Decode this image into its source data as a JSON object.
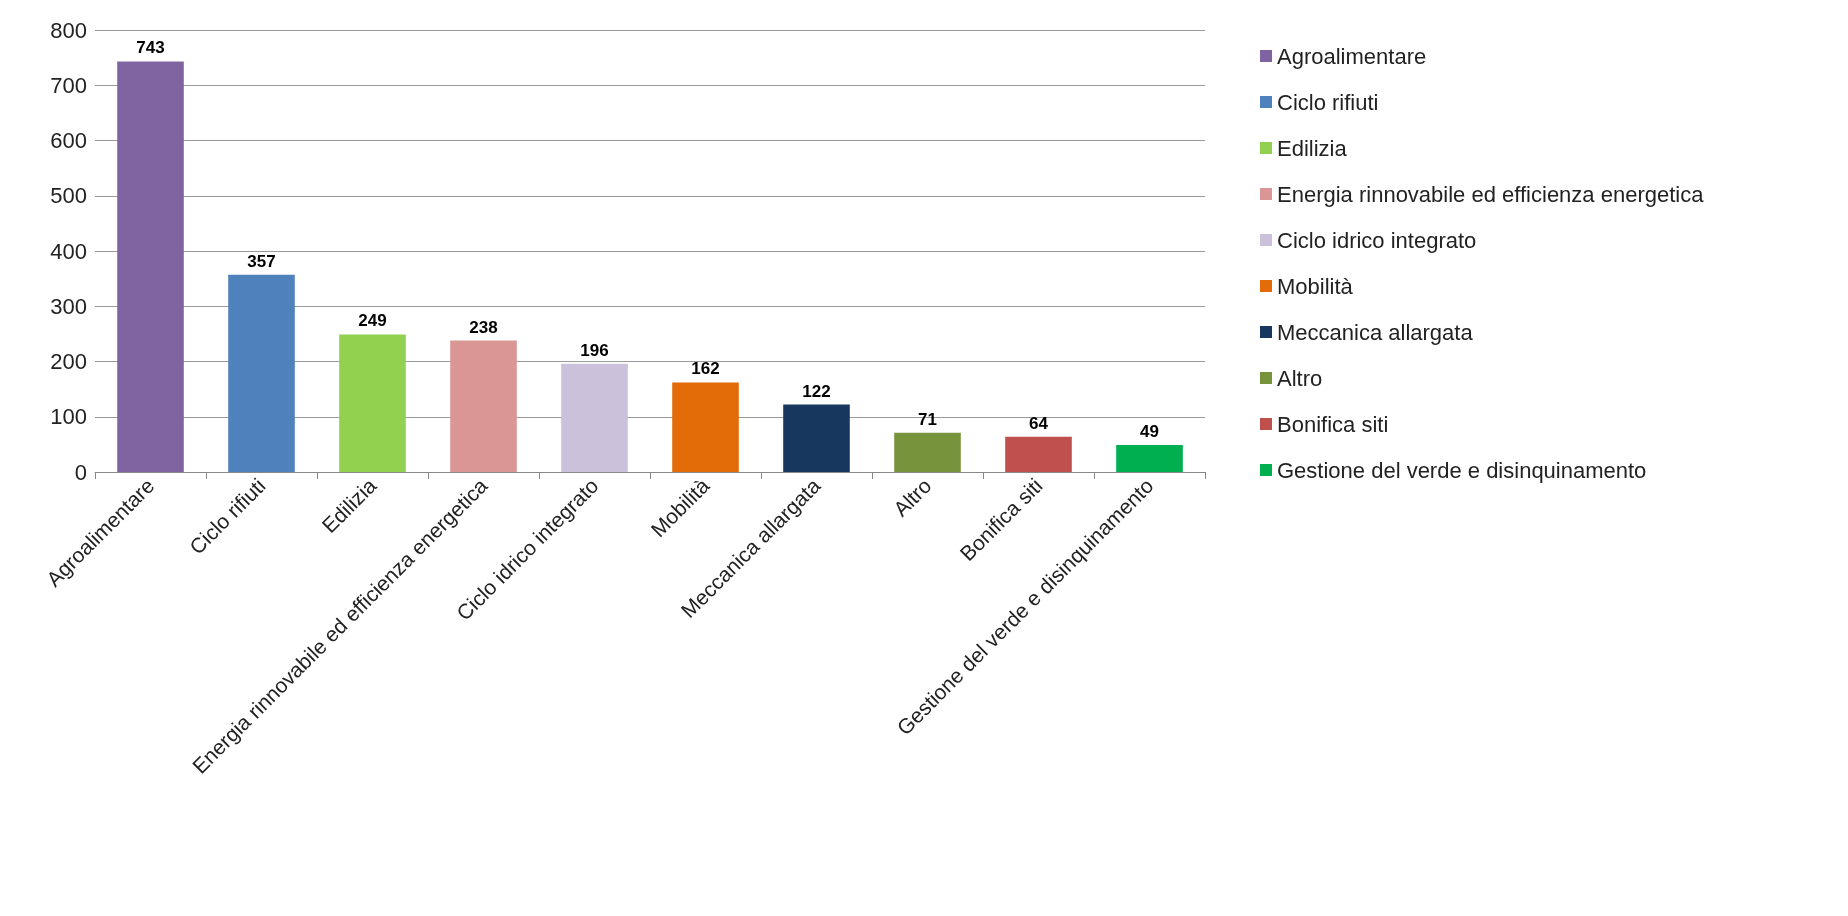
{
  "chart_data": {
    "type": "bar",
    "categories": [
      "Agroalimentare",
      "Ciclo rifiuti",
      "Edilizia",
      "Energia rinnovabile ed efficienza energetica",
      "Ciclo idrico integrato",
      "Mobilità",
      "Meccanica allargata",
      "Altro",
      "Bonifica siti",
      "Gestione del verde e disinquinamento"
    ],
    "series": [
      {
        "name": "Agroalimentare",
        "color": "#8064a2",
        "values": [
          743,
          null,
          null,
          null,
          null,
          null,
          null,
          null,
          null,
          null
        ]
      },
      {
        "name": "Ciclo rifiuti",
        "color": "#4f81bd",
        "values": [
          null,
          357,
          null,
          null,
          null,
          null,
          null,
          null,
          null,
          null
        ]
      },
      {
        "name": "Edilizia",
        "color": "#92d050",
        "values": [
          null,
          null,
          249,
          null,
          null,
          null,
          null,
          null,
          null,
          null
        ]
      },
      {
        "name": "Energia rinnovabile ed efficienza energetica",
        "color": "#d99694",
        "values": [
          null,
          null,
          null,
          238,
          null,
          null,
          null,
          null,
          null,
          null
        ]
      },
      {
        "name": "Ciclo idrico integrato",
        "color": "#ccc1da",
        "values": [
          null,
          null,
          null,
          null,
          196,
          null,
          null,
          null,
          null,
          null
        ]
      },
      {
        "name": "Mobilità",
        "color": "#e36c09",
        "values": [
          null,
          null,
          null,
          null,
          null,
          162,
          null,
          null,
          null,
          null
        ]
      },
      {
        "name": "Meccanica allargata",
        "color": "#17375e",
        "values": [
          null,
          null,
          null,
          null,
          null,
          null,
          122,
          null,
          null,
          null
        ]
      },
      {
        "name": "Altro",
        "color": "#77933c",
        "values": [
          null,
          null,
          null,
          null,
          null,
          null,
          null,
          71,
          null,
          null
        ]
      },
      {
        "name": "Bonifica siti",
        "color": "#c0504d",
        "values": [
          null,
          null,
          null,
          null,
          null,
          null,
          null,
          null,
          64,
          null
        ]
      },
      {
        "name": "Gestione del verde e disinquinamento",
        "color": "#00b050",
        "values": [
          null,
          null,
          null,
          null,
          null,
          null,
          null,
          null,
          null,
          49
        ]
      }
    ],
    "ylim": [
      0,
      800
    ],
    "yticks": [
      0,
      100,
      200,
      300,
      400,
      500,
      600,
      700,
      800
    ],
    "grid": "y",
    "legend": "right",
    "data_labels": true
  }
}
